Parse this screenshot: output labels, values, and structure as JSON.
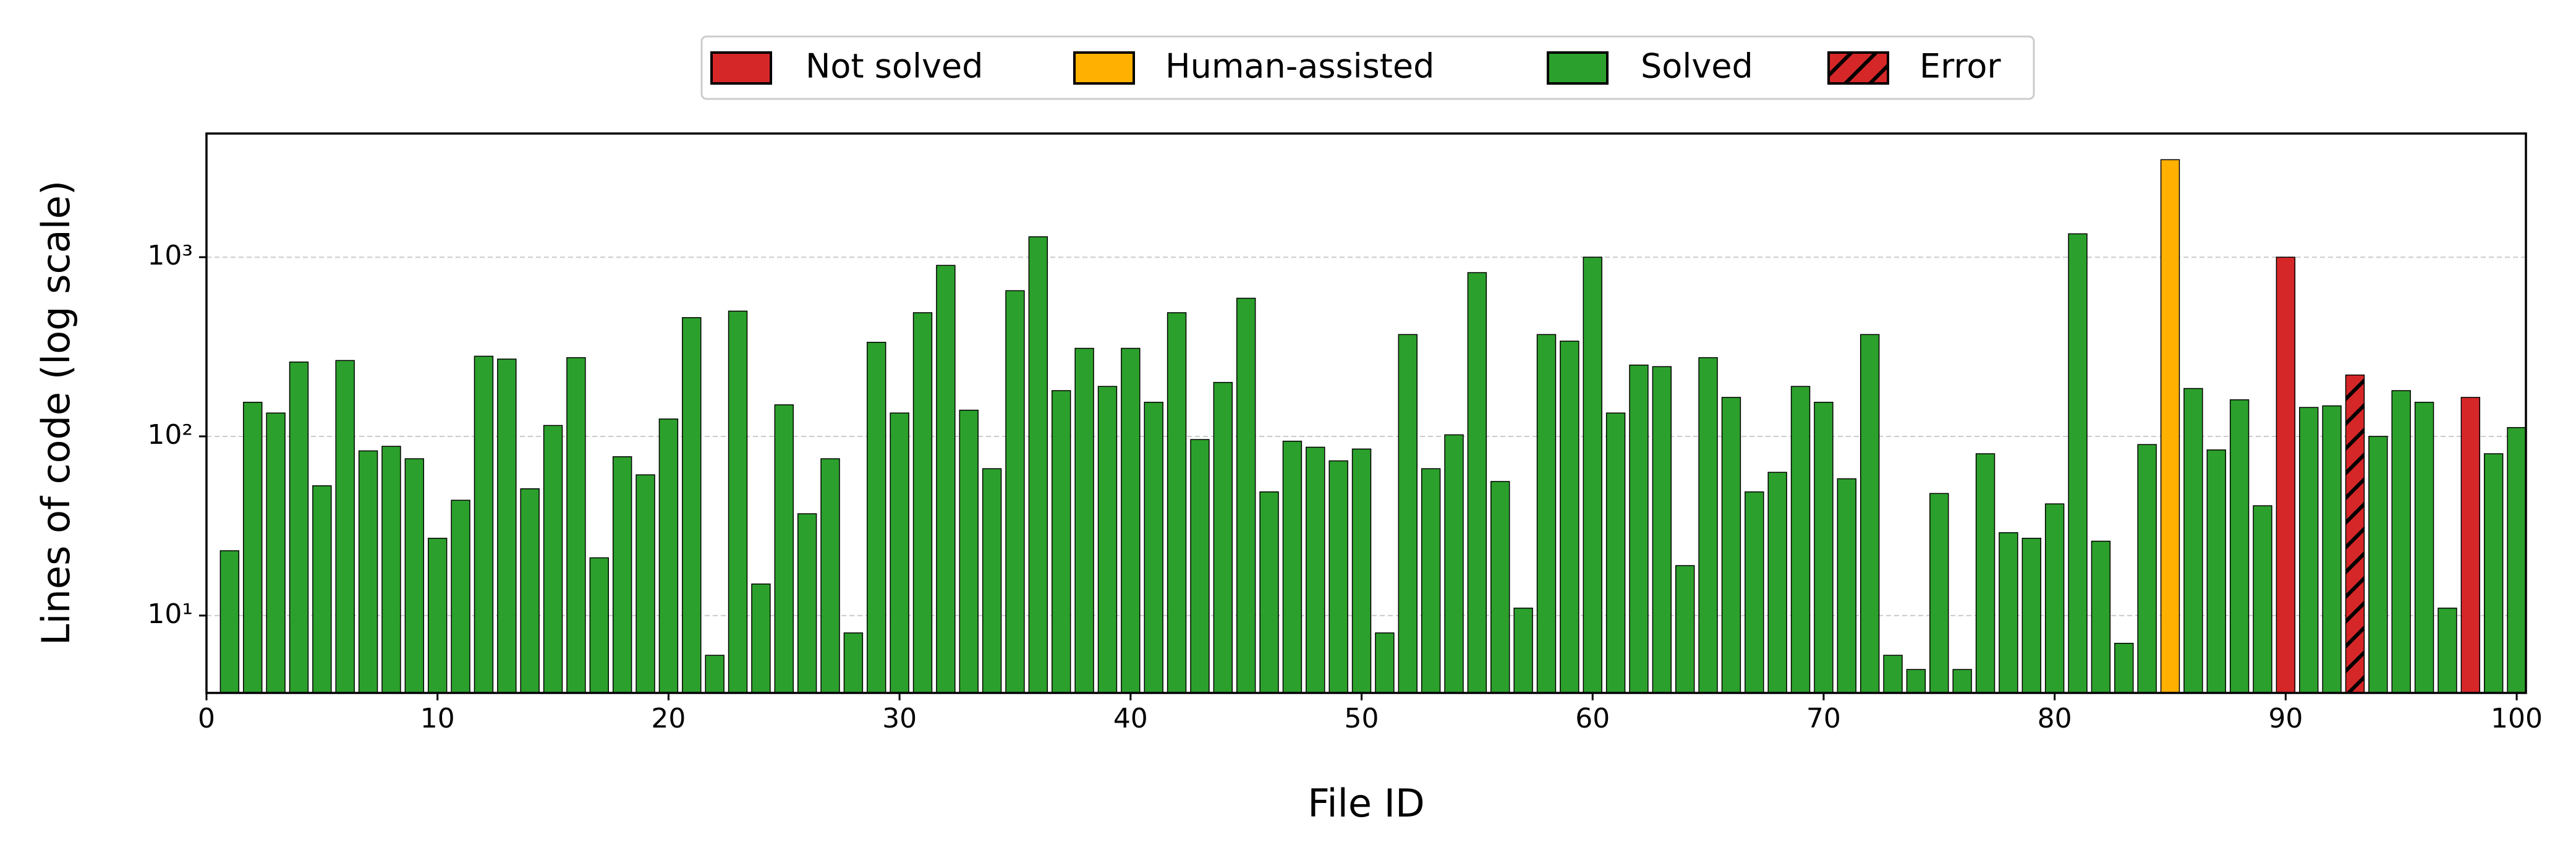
{
  "chart_data": {
    "type": "bar",
    "x_label": "File ID",
    "y_label": "Lines of code (log scale)",
    "x": [
      1,
      2,
      3,
      4,
      5,
      6,
      7,
      8,
      9,
      10,
      11,
      12,
      13,
      14,
      15,
      16,
      17,
      18,
      19,
      20,
      21,
      22,
      23,
      24,
      25,
      26,
      27,
      28,
      29,
      30,
      31,
      32,
      33,
      34,
      35,
      36,
      37,
      38,
      39,
      40,
      41,
      42,
      43,
      44,
      45,
      46,
      47,
      48,
      49,
      50,
      51,
      52,
      53,
      54,
      55,
      56,
      57,
      58,
      59,
      60,
      61,
      62,
      63,
      64,
      65,
      66,
      67,
      68,
      69,
      70,
      71,
      72,
      73,
      74,
      75,
      76,
      77,
      78,
      79,
      80,
      81,
      82,
      83,
      84,
      85,
      86,
      87,
      88,
      89,
      90,
      91,
      92,
      93,
      94,
      95,
      96,
      97,
      98,
      99,
      100
    ],
    "series": [
      {
        "name": "Not solved",
        "color": "#d62728",
        "values": [
          null,
          null,
          null,
          null,
          null,
          null,
          null,
          null,
          null,
          null,
          null,
          null,
          null,
          null,
          null,
          null,
          null,
          null,
          null,
          null,
          null,
          null,
          null,
          null,
          null,
          null,
          null,
          null,
          null,
          null,
          null,
          null,
          null,
          null,
          null,
          null,
          null,
          null,
          null,
          null,
          null,
          null,
          null,
          null,
          null,
          null,
          null,
          null,
          null,
          null,
          null,
          null,
          null,
          null,
          null,
          null,
          null,
          null,
          null,
          null,
          null,
          null,
          null,
          null,
          null,
          null,
          null,
          null,
          null,
          null,
          null,
          null,
          null,
          null,
          null,
          null,
          null,
          null,
          null,
          null,
          null,
          null,
          null,
          null,
          null,
          null,
          null,
          null,
          null,
          1000,
          null,
          null,
          null,
          null,
          null,
          null,
          null,
          165,
          null,
          null
        ]
      },
      {
        "name": "Human-assisted",
        "color": "#ffb000",
        "values": [
          null,
          null,
          null,
          null,
          null,
          null,
          null,
          null,
          null,
          null,
          null,
          null,
          null,
          null,
          null,
          null,
          null,
          null,
          null,
          null,
          null,
          null,
          null,
          null,
          null,
          null,
          null,
          null,
          null,
          null,
          null,
          null,
          null,
          null,
          null,
          null,
          null,
          null,
          null,
          null,
          null,
          null,
          null,
          null,
          null,
          null,
          null,
          null,
          null,
          null,
          null,
          null,
          null,
          null,
          null,
          null,
          null,
          null,
          null,
          null,
          null,
          null,
          null,
          null,
          null,
          null,
          null,
          null,
          null,
          null,
          null,
          null,
          null,
          null,
          null,
          null,
          null,
          null,
          null,
          null,
          null,
          null,
          null,
          null,
          3500,
          null,
          null,
          null,
          null,
          null,
          null,
          null,
          null,
          null,
          null,
          null,
          null,
          null,
          null,
          null
        ]
      },
      {
        "name": "Solved",
        "color": "#2ca02c",
        "values": [
          23,
          155,
          135,
          260,
          53,
          265,
          83,
          88,
          75,
          27,
          44,
          280,
          270,
          51,
          115,
          275,
          21,
          77,
          61,
          125,
          460,
          6,
          500,
          15,
          150,
          37,
          75,
          8,
          335,
          135,
          490,
          900,
          140,
          66,
          650,
          1300,
          180,
          310,
          190,
          310,
          155,
          490,
          96,
          200,
          590,
          49,
          94,
          87,
          73,
          85,
          8,
          370,
          66,
          102,
          820,
          56,
          11,
          370,
          340,
          1000,
          135,
          250,
          245,
          19,
          275,
          165,
          49,
          63,
          190,
          155,
          58,
          370,
          6,
          5,
          48,
          5,
          80,
          29,
          27,
          42,
          1350,
          26,
          7,
          90,
          null,
          185,
          84,
          160,
          41,
          null,
          145,
          148,
          null,
          100,
          180,
          155,
          11,
          null,
          80,
          112
        ]
      },
      {
        "name": "Error",
        "color": "#d62728",
        "hatch": "//",
        "values": [
          null,
          null,
          null,
          null,
          null,
          null,
          null,
          null,
          null,
          null,
          null,
          null,
          null,
          null,
          null,
          null,
          null,
          null,
          null,
          null,
          null,
          null,
          null,
          null,
          null,
          null,
          null,
          null,
          null,
          null,
          null,
          null,
          null,
          null,
          null,
          null,
          null,
          null,
          null,
          null,
          null,
          null,
          null,
          null,
          null,
          null,
          null,
          null,
          null,
          null,
          null,
          null,
          null,
          null,
          null,
          null,
          null,
          null,
          null,
          null,
          null,
          null,
          null,
          null,
          null,
          null,
          null,
          null,
          null,
          null,
          null,
          null,
          null,
          null,
          null,
          null,
          null,
          null,
          null,
          null,
          null,
          null,
          null,
          null,
          null,
          null,
          null,
          null,
          null,
          null,
          null,
          null,
          220,
          null,
          null,
          null,
          null,
          null,
          null,
          null
        ]
      }
    ],
    "xlim": [
      0,
      100.4
    ],
    "xticks": [
      0,
      10,
      20,
      30,
      40,
      50,
      60,
      70,
      80,
      90,
      100
    ],
    "ylim": [
      3.7,
      4900
    ],
    "log_y": true,
    "yticks": [
      {
        "value": 10,
        "label": "10¹"
      },
      {
        "value": 100,
        "label": "10²"
      },
      {
        "value": 1000,
        "label": "10³"
      }
    ],
    "grid": "y",
    "legend": "top"
  }
}
